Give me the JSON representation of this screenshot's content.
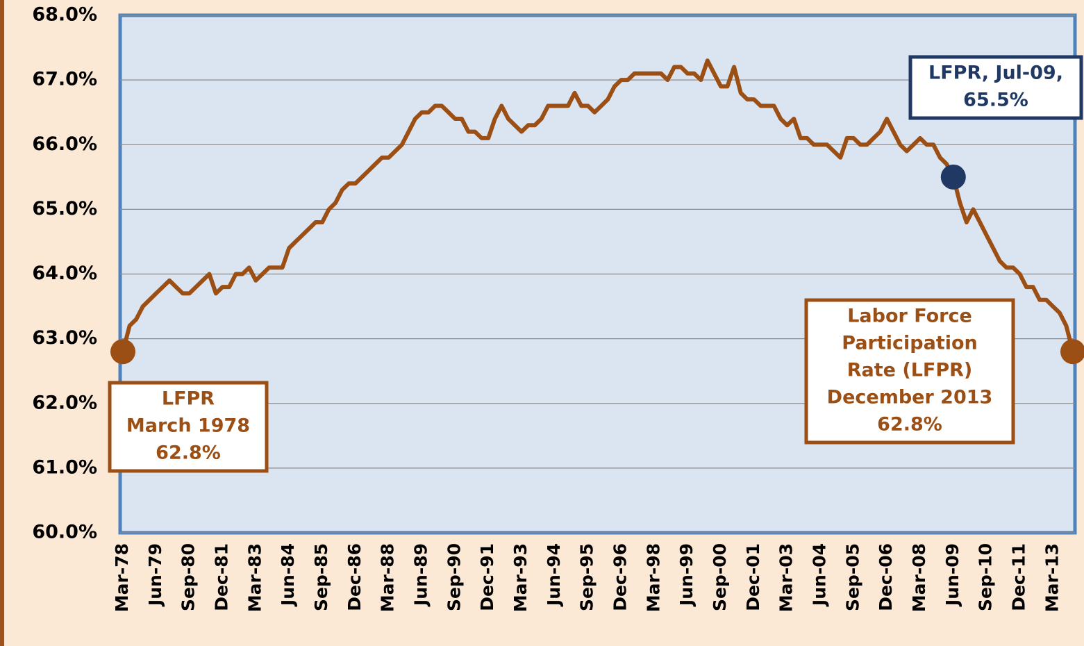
{
  "chart_data": {
    "type": "line",
    "categories": [
      "Mar-78",
      null,
      null,
      null,
      null,
      "Jun-79",
      null,
      null,
      null,
      null,
      "Sep-80",
      null,
      null,
      null,
      null,
      "Dec-81",
      null,
      null,
      null,
      null,
      "Mar-83",
      null,
      null,
      null,
      null,
      "Jun-84",
      null,
      null,
      null,
      null,
      "Sep-85",
      null,
      null,
      null,
      null,
      "Dec-86",
      null,
      null,
      null,
      null,
      "Mar-88",
      null,
      null,
      null,
      null,
      "Jun-89",
      null,
      null,
      null,
      null,
      "Sep-90",
      null,
      null,
      null,
      null,
      "Dec-91",
      null,
      null,
      null,
      null,
      "Mar-93",
      null,
      null,
      null,
      null,
      "Jun-94",
      null,
      null,
      null,
      null,
      "Sep-95",
      null,
      null,
      null,
      null,
      "Dec-96",
      null,
      null,
      null,
      null,
      "Mar-98",
      null,
      null,
      null,
      null,
      "Jun-99",
      null,
      null,
      null,
      null,
      "Sep-00",
      null,
      null,
      null,
      null,
      "Dec-01",
      null,
      null,
      null,
      null,
      "Mar-03",
      null,
      null,
      null,
      null,
      "Jun-04",
      null,
      null,
      null,
      null,
      "Sep-05",
      null,
      null,
      null,
      null,
      "Dec-06",
      null,
      null,
      null,
      null,
      "Mar-08",
      null,
      null,
      null,
      null,
      "Jun-09",
      null,
      null,
      null,
      null,
      "Sep-10",
      null,
      null,
      null,
      null,
      "Dec-11",
      null,
      null,
      null,
      null,
      "Mar-13",
      null,
      null,
      null
    ],
    "series": [
      {
        "name": "Labor Force Participation Rate",
        "color": "#9c4f14",
        "values": [
          62.8,
          63.2,
          63.3,
          63.5,
          63.6,
          63.7,
          63.8,
          63.9,
          63.8,
          63.7,
          63.7,
          63.8,
          63.9,
          64.0,
          63.7,
          63.8,
          63.8,
          64.0,
          64.0,
          64.1,
          63.9,
          64.0,
          64.1,
          64.1,
          64.1,
          64.4,
          64.5,
          64.6,
          64.7,
          64.8,
          64.8,
          65.0,
          65.1,
          65.3,
          65.4,
          65.4,
          65.5,
          65.6,
          65.7,
          65.8,
          65.8,
          65.9,
          66.0,
          66.2,
          66.4,
          66.5,
          66.5,
          66.6,
          66.6,
          66.5,
          66.4,
          66.4,
          66.2,
          66.2,
          66.1,
          66.1,
          66.4,
          66.6,
          66.4,
          66.3,
          66.2,
          66.3,
          66.3,
          66.4,
          66.6,
          66.6,
          66.6,
          66.6,
          66.8,
          66.6,
          66.6,
          66.5,
          66.6,
          66.7,
          66.9,
          67.0,
          67.0,
          67.1,
          67.1,
          67.1,
          67.1,
          67.1,
          67.0,
          67.2,
          67.2,
          67.1,
          67.1,
          67.0,
          67.3,
          67.1,
          66.9,
          66.9,
          67.2,
          66.8,
          66.7,
          66.7,
          66.6,
          66.6,
          66.6,
          66.4,
          66.3,
          66.4,
          66.1,
          66.1,
          66.0,
          66.0,
          66.0,
          65.9,
          65.8,
          66.1,
          66.1,
          66.0,
          66.0,
          66.1,
          66.2,
          66.4,
          66.2,
          66.0,
          65.9,
          66.0,
          66.1,
          66.0,
          66.0,
          65.8,
          65.7,
          65.5,
          65.1,
          64.8,
          65.0,
          64.8,
          64.6,
          64.4,
          64.2,
          64.1,
          64.1,
          64.0,
          63.8,
          63.8,
          63.6,
          63.6,
          63.5,
          63.4,
          63.2,
          62.8
        ]
      }
    ],
    "ylim": [
      60,
      68
    ],
    "yticks": [
      {
        "value": 60,
        "label": "60.0%"
      },
      {
        "value": 61,
        "label": "61.0%"
      },
      {
        "value": 62,
        "label": "62.0%"
      },
      {
        "value": 63,
        "label": "63.0%"
      },
      {
        "value": 64,
        "label": "64.0%"
      },
      {
        "value": 65,
        "label": "65.0%"
      },
      {
        "value": 66,
        "label": "66.0%"
      },
      {
        "value": 67,
        "label": "67.0%"
      },
      {
        "value": 68,
        "label": "68.0%"
      }
    ],
    "grid": true,
    "annotations": [
      {
        "lines": [
          "LFPR",
          "March 1978",
          "62.8%"
        ],
        "point": 0,
        "color": "#9c4f14"
      },
      {
        "lines": [
          "LFPR, Jul-09,",
          "65.5%"
        ],
        "point": 125,
        "color": "#1f3864"
      },
      {
        "lines": [
          "Labor Force",
          "Participation",
          "Rate (LFPR)",
          "December 2013",
          "62.8%"
        ],
        "point": 143,
        "color": "#9c4f14"
      }
    ]
  }
}
